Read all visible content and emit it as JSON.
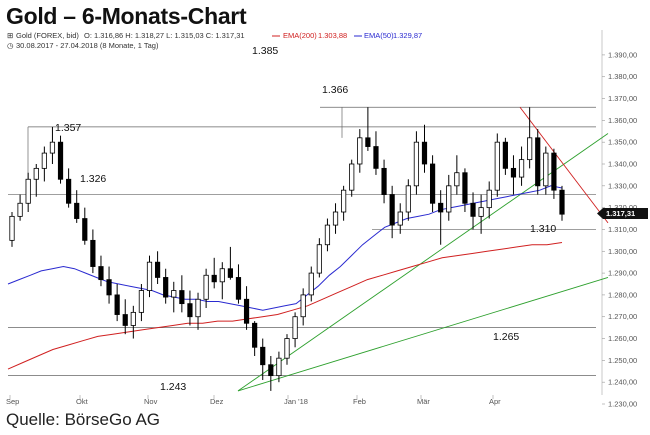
{
  "title": "Gold – 6-Monats-Chart",
  "source": "Quelle: BörseGo AG",
  "header": {
    "line1_prefix": "Gold (FOREX, bid)",
    "ohlc": "O: 1.316,86  H: 1.318,27  L: 1.315,03  C: 1.317,31",
    "ema200_label": "EMA(200)",
    "ema200_value": "1.303,88",
    "ema50_label": "EMA(50)",
    "ema50_value": "1.329,87",
    "line2": "30.08.2017 - 27.04.2018  (8 Monate, 1 Tag)"
  },
  "colors": {
    "candle": "#000000",
    "ema200": "#d02020",
    "ema50": "#2a2ad0",
    "trend_up": "#2ea02e",
    "trend_down": "#d02020",
    "level": "#666666",
    "price_tag": "#111111"
  },
  "chart_data": {
    "type": "candlestick",
    "ylim": [
      1230,
      1395
    ],
    "yticks": [
      "1.230,00",
      "1.240,00",
      "1.250,00",
      "1.260,00",
      "1.270,00",
      "1.280,00",
      "1.290,00",
      "1.300,00",
      "1.310,00",
      "1.320,00",
      "1.330,00",
      "1.340,00",
      "1.350,00",
      "1.360,00",
      "1.370,00",
      "1.380,00",
      "1.390,00"
    ],
    "x_ticks": [
      "Sep",
      "Okt",
      "Nov",
      "Dez",
      "Jan '18",
      "Feb",
      "Mär",
      "Apr"
    ],
    "last_price": "1.317,31",
    "ohlc_approx": [
      [
        1305,
        1318,
        1302,
        1316
      ],
      [
        1316,
        1326,
        1314,
        1322
      ],
      [
        1322,
        1336,
        1318,
        1333
      ],
      [
        1333,
        1340,
        1325,
        1338
      ],
      [
        1338,
        1348,
        1332,
        1345
      ],
      [
        1345,
        1357,
        1340,
        1350
      ],
      [
        1350,
        1353,
        1331,
        1333
      ],
      [
        1333,
        1338,
        1320,
        1322
      ],
      [
        1322,
        1328,
        1313,
        1315
      ],
      [
        1315,
        1320,
        1303,
        1305
      ],
      [
        1305,
        1310,
        1290,
        1293
      ],
      [
        1293,
        1298,
        1284,
        1287
      ],
      [
        1287,
        1293,
        1276,
        1280
      ],
      [
        1280,
        1285,
        1268,
        1271
      ],
      [
        1271,
        1278,
        1262,
        1266
      ],
      [
        1266,
        1275,
        1260,
        1272
      ],
      [
        1272,
        1285,
        1268,
        1282
      ],
      [
        1282,
        1298,
        1279,
        1295
      ],
      [
        1295,
        1300,
        1285,
        1288
      ],
      [
        1288,
        1292,
        1276,
        1279
      ],
      [
        1279,
        1286,
        1272,
        1282
      ],
      [
        1282,
        1289,
        1272,
        1276
      ],
      [
        1276,
        1282,
        1266,
        1270
      ],
      [
        1270,
        1281,
        1264,
        1278
      ],
      [
        1278,
        1292,
        1274,
        1289
      ],
      [
        1289,
        1297,
        1283,
        1286
      ],
      [
        1286,
        1295,
        1278,
        1292
      ],
      [
        1292,
        1302,
        1287,
        1288
      ],
      [
        1288,
        1294,
        1276,
        1278
      ],
      [
        1278,
        1284,
        1264,
        1267
      ],
      [
        1267,
        1268,
        1252,
        1256
      ],
      [
        1256,
        1260,
        1241,
        1248
      ],
      [
        1248,
        1252,
        1236,
        1243
      ],
      [
        1243,
        1254,
        1240,
        1251
      ],
      [
        1251,
        1262,
        1248,
        1260
      ],
      [
        1260,
        1272,
        1256,
        1270
      ],
      [
        1270,
        1283,
        1266,
        1280
      ],
      [
        1280,
        1293,
        1277,
        1290
      ],
      [
        1290,
        1306,
        1288,
        1303
      ],
      [
        1303,
        1315,
        1300,
        1312
      ],
      [
        1312,
        1322,
        1308,
        1318
      ],
      [
        1318,
        1330,
        1314,
        1328
      ],
      [
        1328,
        1342,
        1325,
        1340
      ],
      [
        1340,
        1356,
        1336,
        1352
      ],
      [
        1352,
        1366,
        1346,
        1348
      ],
      [
        1348,
        1355,
        1335,
        1338
      ],
      [
        1338,
        1342,
        1322,
        1326
      ],
      [
        1326,
        1330,
        1306,
        1312
      ],
      [
        1312,
        1322,
        1308,
        1318
      ],
      [
        1318,
        1333,
        1314,
        1330
      ],
      [
        1330,
        1355,
        1326,
        1350
      ],
      [
        1350,
        1358,
        1336,
        1340
      ],
      [
        1340,
        1344,
        1318,
        1322
      ],
      [
        1322,
        1328,
        1303,
        1318
      ],
      [
        1318,
        1335,
        1314,
        1330
      ],
      [
        1330,
        1344,
        1326,
        1336
      ],
      [
        1336,
        1338,
        1318,
        1322
      ],
      [
        1322,
        1327,
        1310,
        1316
      ],
      [
        1316,
        1326,
        1308,
        1320
      ],
      [
        1320,
        1332,
        1315,
        1328
      ],
      [
        1328,
        1354,
        1325,
        1350
      ],
      [
        1350,
        1352,
        1335,
        1338
      ],
      [
        1338,
        1344,
        1326,
        1334
      ],
      [
        1334,
        1348,
        1330,
        1342
      ],
      [
        1342,
        1366,
        1338,
        1352
      ],
      [
        1352,
        1356,
        1326,
        1330
      ],
      [
        1330,
        1348,
        1326,
        1345
      ],
      [
        1345,
        1347,
        1324,
        1328
      ],
      [
        1328,
        1330,
        1314,
        1317
      ]
    ],
    "ema50_approx": [
      1285,
      1287,
      1289,
      1291,
      1292,
      1293,
      1292,
      1290,
      1288,
      1286,
      1285,
      1284,
      1283,
      1282,
      1280,
      1279,
      1278,
      1278,
      1277,
      1277,
      1276,
      1275,
      1274,
      1273,
      1274,
      1275,
      1276,
      1280,
      1284,
      1289,
      1293,
      1298,
      1303,
      1307,
      1311,
      1313,
      1315,
      1316,
      1317,
      1319,
      1320,
      1321,
      1322,
      1323,
      1324,
      1325,
      1326,
      1327,
      1328,
      1330,
      1329
    ],
    "ema200_approx": [
      1246,
      1249,
      1252,
      1255,
      1257,
      1259,
      1261,
      1262,
      1263,
      1264,
      1265,
      1266,
      1267,
      1267,
      1268,
      1268,
      1269,
      1270,
      1271,
      1273,
      1275,
      1278,
      1281,
      1284,
      1287,
      1289,
      1291,
      1293,
      1295,
      1297,
      1298,
      1299,
      1300,
      1301,
      1302,
      1303,
      1303,
      1304
    ],
    "levels": [
      {
        "value": 1366,
        "label": "1.366"
      },
      {
        "value": 1357,
        "label": "1.357"
      },
      {
        "value": 1326,
        "label": "1.326"
      },
      {
        "value": 1310,
        "label": "1.310"
      },
      {
        "value": 1265,
        "label": "1.265"
      },
      {
        "value": 1243,
        "label": "1.243"
      },
      {
        "value": 1385,
        "label": "1.385"
      }
    ]
  }
}
